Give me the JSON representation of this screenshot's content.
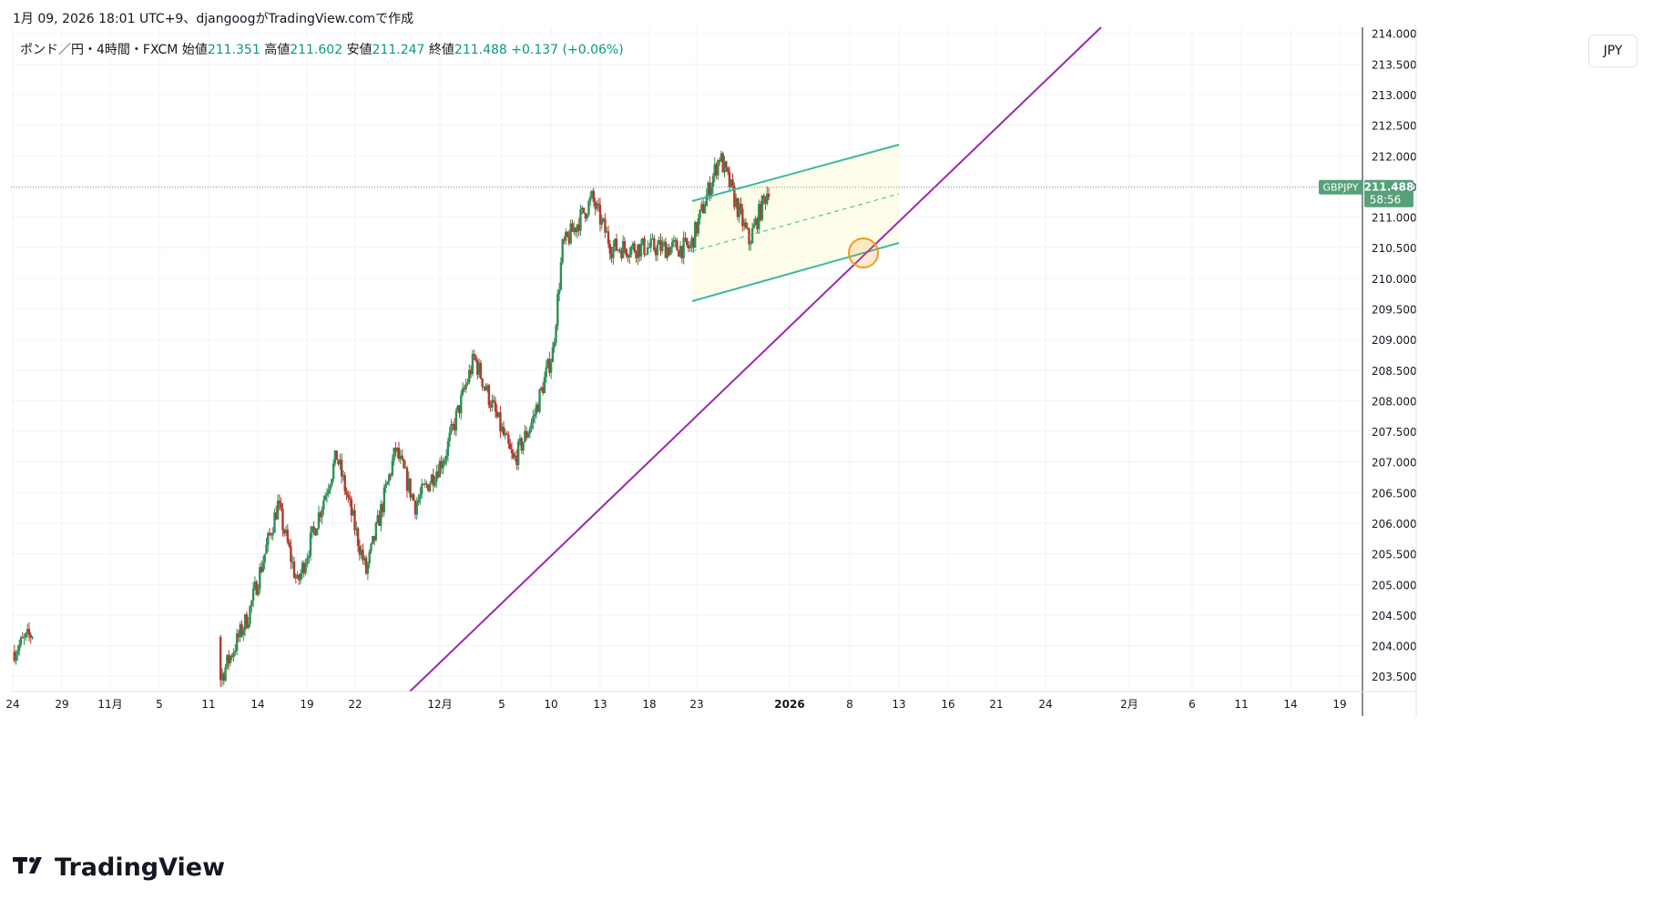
{
  "header": {
    "text": "1月 09, 2026 18:01 UTC+9、djangoogがTradingView.comで作成"
  },
  "legend": {
    "symbol": "ポンド／円・4時間・FXCM",
    "open_label": "始値",
    "open": "211.351",
    "high_label": "高値",
    "high": "211.602",
    "low_label": "安値",
    "low": "211.247",
    "close_label": "終値",
    "close": "211.488",
    "change": "+0.137 (+0.06%)"
  },
  "currency": "JPY",
  "price_tag": {
    "symbol": "GBPJPY",
    "price": "211.488",
    "countdown": "58:56",
    "color": "#56a07a"
  },
  "footer": {
    "brand": "TradingView",
    "logo": "tradingview-logo-icon"
  },
  "chart_data": {
    "type": "candlestick",
    "title": "",
    "ylim": [
      203.25,
      214.1
    ],
    "y_ticks": [
      "203.500",
      "204.000",
      "204.500",
      "205.000",
      "205.500",
      "206.000",
      "206.500",
      "207.000",
      "207.500",
      "208.000",
      "208.500",
      "209.000",
      "209.500",
      "210.000",
      "210.500",
      "211.000",
      "211.500",
      "212.000",
      "212.500",
      "213.000",
      "213.500",
      "214.000"
    ],
    "x_ticks": [
      "24",
      "29",
      "11月",
      "5",
      "11",
      "14",
      "19",
      "22",
      "12月",
      "5",
      "10",
      "13",
      "18",
      "23",
      "2026",
      "8",
      "13",
      "16",
      "21",
      "24",
      "2月",
      "6",
      "11",
      "14",
      "19"
    ],
    "grid": true,
    "colors": {
      "up": "#2f8f55",
      "down": "#b03a2e",
      "channel": "#3bb8a4",
      "trendline": "#9c27b0",
      "channel_fill": "#fefde8",
      "highlight": "#f09a1d"
    },
    "last_price": 211.488,
    "key_points": [
      {
        "date": "10/24",
        "price": 203.9
      },
      {
        "date": "10/26",
        "price": 204.2
      },
      {
        "date": "11/14",
        "price": 203.4
      },
      {
        "date": "11/17",
        "price": 204.5
      },
      {
        "date": "11/20",
        "price": 206.3
      },
      {
        "date": "11/22",
        "price": 205.0
      },
      {
        "date": "11/26",
        "price": 207.1
      },
      {
        "date": "11/29",
        "price": 205.2
      },
      {
        "date": "12/2",
        "price": 207.2
      },
      {
        "date": "12/4",
        "price": 206.3
      },
      {
        "date": "12/7",
        "price": 207.1
      },
      {
        "date": "12/10",
        "price": 208.7
      },
      {
        "date": "12/14",
        "price": 207.0
      },
      {
        "date": "12/16",
        "price": 207.7
      },
      {
        "date": "12/18",
        "price": 208.8
      },
      {
        "date": "12/19",
        "price": 210.5
      },
      {
        "date": "12/22",
        "price": 211.3
      },
      {
        "date": "12/24",
        "price": 210.5
      },
      {
        "date": "1/1",
        "price": 210.5
      },
      {
        "date": "1/4",
        "price": 212.0
      },
      {
        "date": "1/7",
        "price": 210.6
      },
      {
        "date": "1/9",
        "price": 211.488
      }
    ]
  }
}
